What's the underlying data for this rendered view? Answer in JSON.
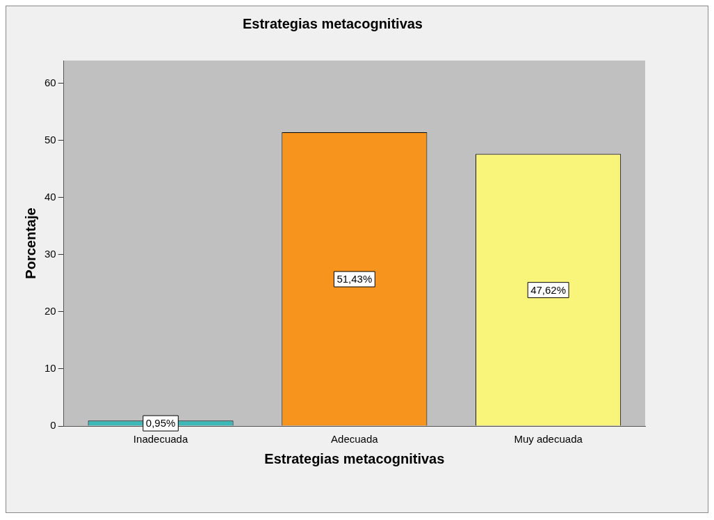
{
  "chart_data": {
    "type": "bar",
    "title": "Estrategias metacognitivas",
    "xlabel": "Estrategias metacognitivas",
    "ylabel": "Porcentaje",
    "categories": [
      "Inadecuada",
      "Adecuada",
      "Muy adecuada"
    ],
    "values": [
      0.95,
      51.43,
      47.62
    ],
    "value_labels": [
      "0,95%",
      "51,43%",
      "47,62%"
    ],
    "colors": [
      "#3cb8b8",
      "#f7941d",
      "#f9f57a"
    ],
    "ylim": [
      0,
      64
    ],
    "yticks": [
      0,
      10,
      20,
      30,
      40,
      50,
      60
    ],
    "grid": false,
    "legend": false
  }
}
